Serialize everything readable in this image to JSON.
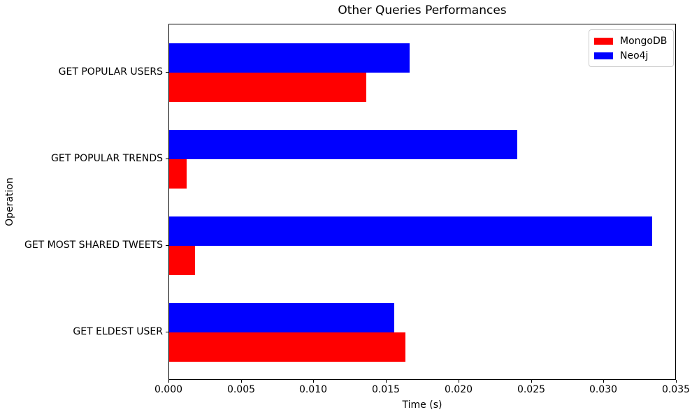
{
  "chart_data": {
    "type": "bar",
    "orientation": "horizontal",
    "title": "Other Queries Performances",
    "xlabel": "Time (s)",
    "ylabel": "Operation",
    "xlim": [
      0,
      0.035
    ],
    "xtick_labels": [
      "0.000",
      "0.005",
      "0.010",
      "0.015",
      "0.020",
      "0.025",
      "0.030",
      "0.035"
    ],
    "categories": [
      "GET POPULAR USERS",
      "GET POPULAR TRENDS",
      "GET MOST SHARED TWEETS",
      "GET ELDEST USER"
    ],
    "categories_order": "top-to-bottom",
    "series": [
      {
        "name": "MongoDB",
        "color": "#ff0000",
        "values": [
          0.0136,
          0.0012,
          0.0018,
          0.0163
        ]
      },
      {
        "name": "Neo4j",
        "color": "#0000ff",
        "values": [
          0.0166,
          0.024,
          0.0333,
          0.0155
        ]
      }
    ],
    "legend": {
      "position": "upper right",
      "entries": [
        "MongoDB",
        "Neo4j"
      ]
    },
    "grid": false,
    "background_color": "#ffffff",
    "spine_color": "#000000"
  }
}
